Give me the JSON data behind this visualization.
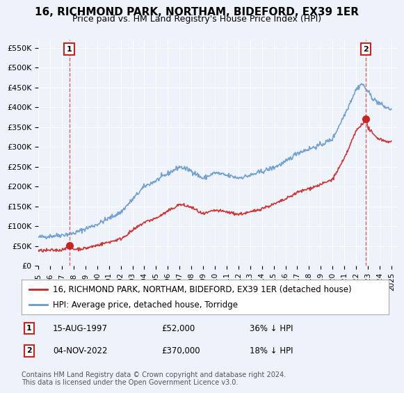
{
  "title": "16, RICHMOND PARK, NORTHAM, BIDEFORD, EX39 1ER",
  "subtitle": "Price paid vs. HM Land Registry's House Price Index (HPI)",
  "ylabel_ticks": [
    "£0",
    "£50K",
    "£100K",
    "£150K",
    "£200K",
    "£250K",
    "£300K",
    "£350K",
    "£400K",
    "£450K",
    "£500K",
    "£550K"
  ],
  "ytick_values": [
    0,
    50000,
    100000,
    150000,
    200000,
    250000,
    300000,
    350000,
    400000,
    450000,
    500000,
    550000
  ],
  "ylim": [
    0,
    570000
  ],
  "xlim_start": 1995.0,
  "xlim_end": 2025.5,
  "xtick_years": [
    1995,
    1996,
    1997,
    1998,
    1999,
    2000,
    2001,
    2002,
    2003,
    2004,
    2005,
    2006,
    2007,
    2008,
    2009,
    2010,
    2011,
    2012,
    2013,
    2014,
    2015,
    2016,
    2017,
    2018,
    2019,
    2020,
    2021,
    2022,
    2023,
    2024,
    2025
  ],
  "background_color": "#eef2fa",
  "plot_bg_color": "#eef2fa",
  "grid_color": "#ffffff",
  "hpi_color": "#6699cc",
  "price_color": "#cc2222",
  "marker_color": "#cc2222",
  "dashed_line_color": "#cc4444",
  "annotation_box_color": "#cc2222",
  "legend_label_red": "16, RICHMOND PARK, NORTHAM, BIDEFORD, EX39 1ER (detached house)",
  "legend_label_blue": "HPI: Average price, detached house, Torridge",
  "sale1_x": 1997.62,
  "sale1_y": 52000,
  "sale1_label": "1",
  "sale1_date": "15-AUG-1997",
  "sale1_price": "£52,000",
  "sale1_note": "36% ↓ HPI",
  "sale2_x": 2022.84,
  "sale2_y": 370000,
  "sale2_label": "2",
  "sale2_date": "04-NOV-2022",
  "sale2_price": "£370,000",
  "sale2_note": "18% ↓ HPI",
  "footer": "Contains HM Land Registry data © Crown copyright and database right 2024.\nThis data is licensed under the Open Government Licence v3.0.",
  "title_fontsize": 11,
  "subtitle_fontsize": 9,
  "tick_fontsize": 8,
  "legend_fontsize": 8.5,
  "footer_fontsize": 7
}
